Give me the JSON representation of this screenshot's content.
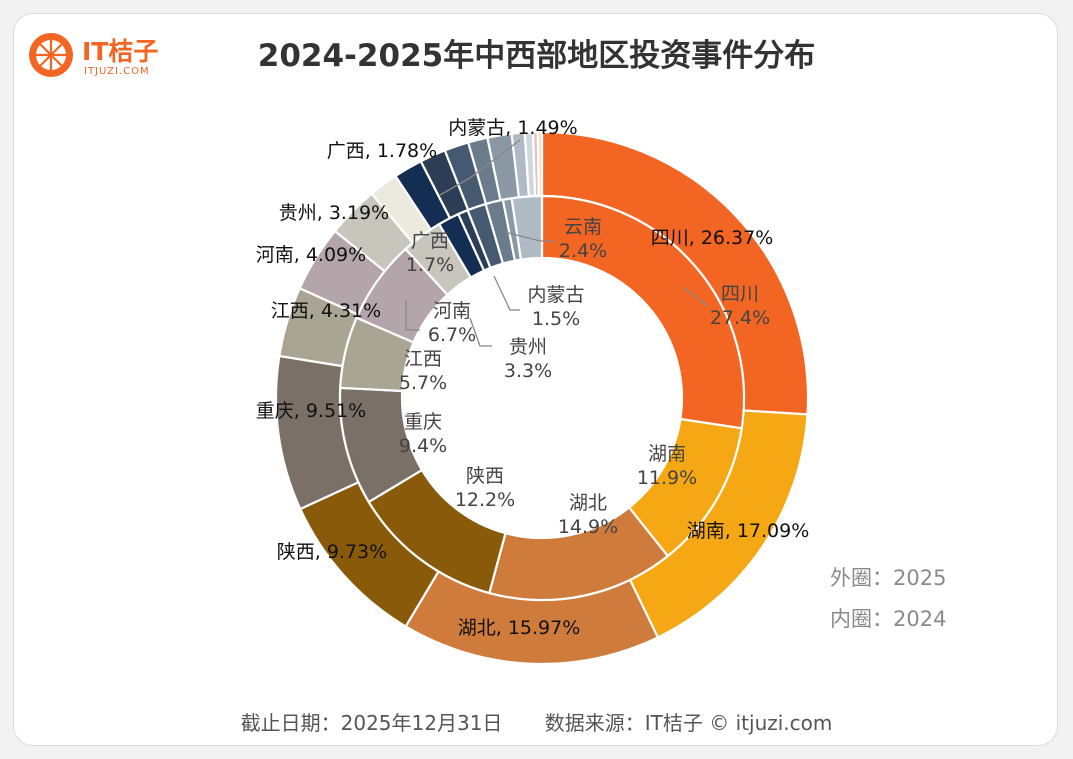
{
  "logo": {
    "name": "IT桔子",
    "domain": "ITJUZI.COM"
  },
  "chart_data": {
    "type": "pie",
    "title": "2024-2025年中西部地区投资事件分布",
    "outer": {
      "label": "外圈：2025",
      "year": "2025",
      "slices": [
        {
          "name": "四川",
          "value": 26.37,
          "label": "四川, 26.37%",
          "color": "#f26522"
        },
        {
          "name": "湖南",
          "value": 17.09,
          "label": "湖南, 17.09%",
          "color": "#f5a814"
        },
        {
          "name": "湖北",
          "value": 15.97,
          "label": "湖北, 15.97%",
          "color": "#cf7b3c"
        },
        {
          "name": "陕西",
          "value": 9.73,
          "label": "陕西, 9.73%",
          "color": "#8a5a0b"
        },
        {
          "name": "重庆",
          "value": 9.51,
          "label": "重庆, 9.51%",
          "color": "#7a7068"
        },
        {
          "name": "江西",
          "value": 4.31,
          "label": "江西, 4.31%",
          "color": "#aaa492"
        },
        {
          "name": "河南",
          "value": 4.09,
          "label": "河南, 4.09%",
          "color": "#b3a5aa"
        },
        {
          "name": "贵州",
          "value": 3.19,
          "label": "贵州, 3.19%",
          "color": "#c8c5bd"
        },
        {
          "name": "",
          "value": 1.8,
          "label": "",
          "color": "#ece9df"
        },
        {
          "name": "广西",
          "value": 1.78,
          "label": "广西, 1.78%",
          "color": "#142d52"
        },
        {
          "name": "",
          "value": 1.6,
          "label": "",
          "color": "#2c3e55"
        },
        {
          "name": "",
          "value": 1.5,
          "label": "",
          "color": "#455a70"
        },
        {
          "name": "",
          "value": 1.2,
          "label": "",
          "color": "#6a7b8c"
        },
        {
          "name": "内蒙古",
          "value": 1.49,
          "label": "内蒙古, 1.49%",
          "color": "#8a98a6"
        },
        {
          "name": "",
          "value": 0.8,
          "label": "",
          "color": "#b0bac4"
        },
        {
          "name": "",
          "value": 0.5,
          "label": "",
          "color": "#d2d7dc"
        },
        {
          "name": "",
          "value": 0.3,
          "label": "",
          "color": "#e4c6b8"
        },
        {
          "name": "",
          "value": 0.25,
          "label": "",
          "color": "#f0d8cc"
        }
      ]
    },
    "inner": {
      "label": "内圈：2024",
      "year": "2024",
      "slices": [
        {
          "name": "四川",
          "value": 27.4,
          "pct": "27.4%",
          "color": "#f26522"
        },
        {
          "name": "湖南",
          "value": 11.9,
          "pct": "11.9%",
          "color": "#f5a814"
        },
        {
          "name": "湖北",
          "value": 14.9,
          "pct": "14.9%",
          "color": "#cf7b3c"
        },
        {
          "name": "陕西",
          "value": 12.2,
          "pct": "12.2%",
          "color": "#8a5a0b"
        },
        {
          "name": "重庆",
          "value": 9.4,
          "pct": "9.4%",
          "color": "#7a7068"
        },
        {
          "name": "江西",
          "value": 5.7,
          "pct": "5.7%",
          "color": "#aaa492"
        },
        {
          "name": "河南",
          "value": 6.7,
          "pct": "6.7%",
          "color": "#b3a5aa"
        },
        {
          "name": "贵州",
          "value": 3.3,
          "pct": "3.3%",
          "color": "#c8c5bd"
        },
        {
          "name": "广西",
          "value": 1.7,
          "pct": "1.7%",
          "color": "#142d52"
        },
        {
          "name": "",
          "value": 0.8,
          "pct": "",
          "color": "#2c3e55"
        },
        {
          "name": "内蒙古",
          "value": 1.5,
          "pct": "1.5%",
          "color": "#455a70"
        },
        {
          "name": "",
          "value": 1.4,
          "pct": "",
          "color": "#6a7b8c"
        },
        {
          "name": "",
          "value": 0.7,
          "pct": "",
          "color": "#8a98a6"
        },
        {
          "name": "云南",
          "value": 2.4,
          "pct": "2.4%",
          "color": "#b0bac4"
        }
      ]
    }
  },
  "footer": {
    "cutoff": "截止日期：2025年12月31日",
    "source": "数据来源：IT桔子 © itjuzi.com"
  }
}
